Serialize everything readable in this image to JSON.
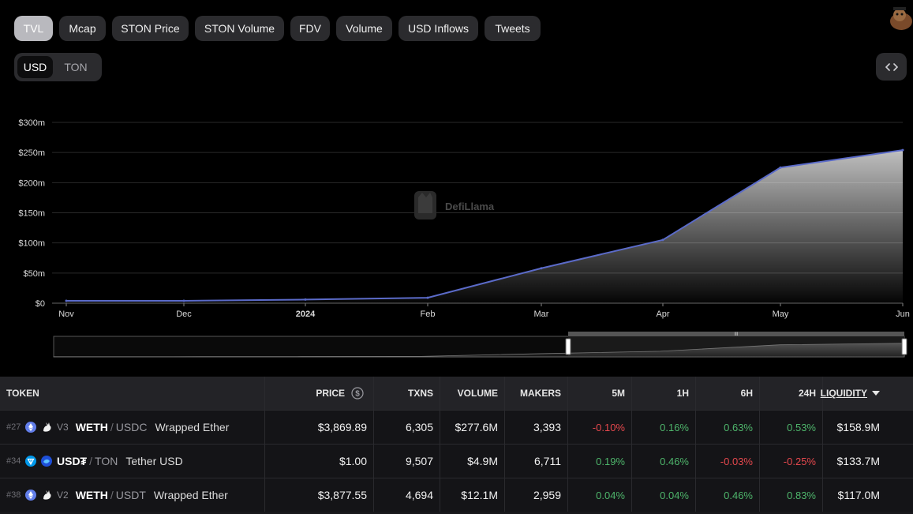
{
  "tabs": [
    {
      "label": "TVL",
      "active": true
    },
    {
      "label": "Mcap"
    },
    {
      "label": "STON Price"
    },
    {
      "label": "STON Volume"
    },
    {
      "label": "FDV"
    },
    {
      "label": "Volume"
    },
    {
      "label": "USD Inflows"
    },
    {
      "label": "Tweets"
    }
  ],
  "currency": {
    "usd": "USD",
    "ton": "TON",
    "selected": "USD"
  },
  "watermark": "DefiLlama",
  "colors": {
    "line": "#5b6bc9",
    "accent_green": "#4eb56b",
    "accent_red": "#e5484d"
  },
  "chart_data": {
    "type": "area",
    "x": [
      "2023-11-01",
      "2023-12-01",
      "2024-01-01",
      "2024-02-01",
      "2024-03-01",
      "2024-04-01",
      "2024-05-01",
      "2024-06-01"
    ],
    "values": [
      4,
      4,
      6,
      9,
      58,
      105,
      225,
      254
    ],
    "y_unit": "m",
    "x_tick_labels": [
      "Nov",
      "Dec",
      "2024",
      "Feb",
      "Mar",
      "Apr",
      "May",
      "Jun"
    ],
    "y_tick_labels": [
      "$0",
      "$50m",
      "$100m",
      "$150m",
      "$200m",
      "$250m",
      "$300m"
    ],
    "ylim": [
      0,
      300
    ],
    "grid": true,
    "legend": "none"
  },
  "table": {
    "headers": {
      "token": "TOKEN",
      "price": "PRICE",
      "txns": "TXNS",
      "volume": "VOLUME",
      "makers": "MAKERS",
      "m5": "5M",
      "h1": "1H",
      "h6": "6H",
      "h24": "24H",
      "liquidity": "LIQUIDITY"
    },
    "rows": [
      {
        "rank": "#27",
        "version": "V3",
        "symbol": "WETH",
        "quote": "USDC",
        "name": "Wrapped Ether",
        "price": "$3,869.89",
        "txns": "6,305",
        "volume": "$277.6M",
        "makers": "3,393",
        "m5": "-0.10%",
        "h1": "0.16%",
        "h6": "0.63%",
        "h24": "0.53%",
        "liquidity": "$158.9M",
        "icon": "ethereum-icon"
      },
      {
        "rank": "#34",
        "version": "",
        "symbol": "USD₮",
        "quote": "TON",
        "name": "Tether USD",
        "price": "$1.00",
        "txns": "9,507",
        "volume": "$4.9M",
        "makers": "6,711",
        "m5": "0.19%",
        "h1": "0.46%",
        "h6": "-0.03%",
        "h24": "-0.25%",
        "liquidity": "$133.7M",
        "icon": "ton-icon"
      },
      {
        "rank": "#38",
        "version": "V2",
        "symbol": "WETH",
        "quote": "USDT",
        "name": "Wrapped Ether",
        "price": "$3,877.55",
        "txns": "4,694",
        "volume": "$12.1M",
        "makers": "2,959",
        "m5": "0.04%",
        "h1": "0.04%",
        "h6": "0.46%",
        "h24": "0.83%",
        "liquidity": "$117.0M",
        "icon": "ethereum-icon"
      }
    ]
  }
}
